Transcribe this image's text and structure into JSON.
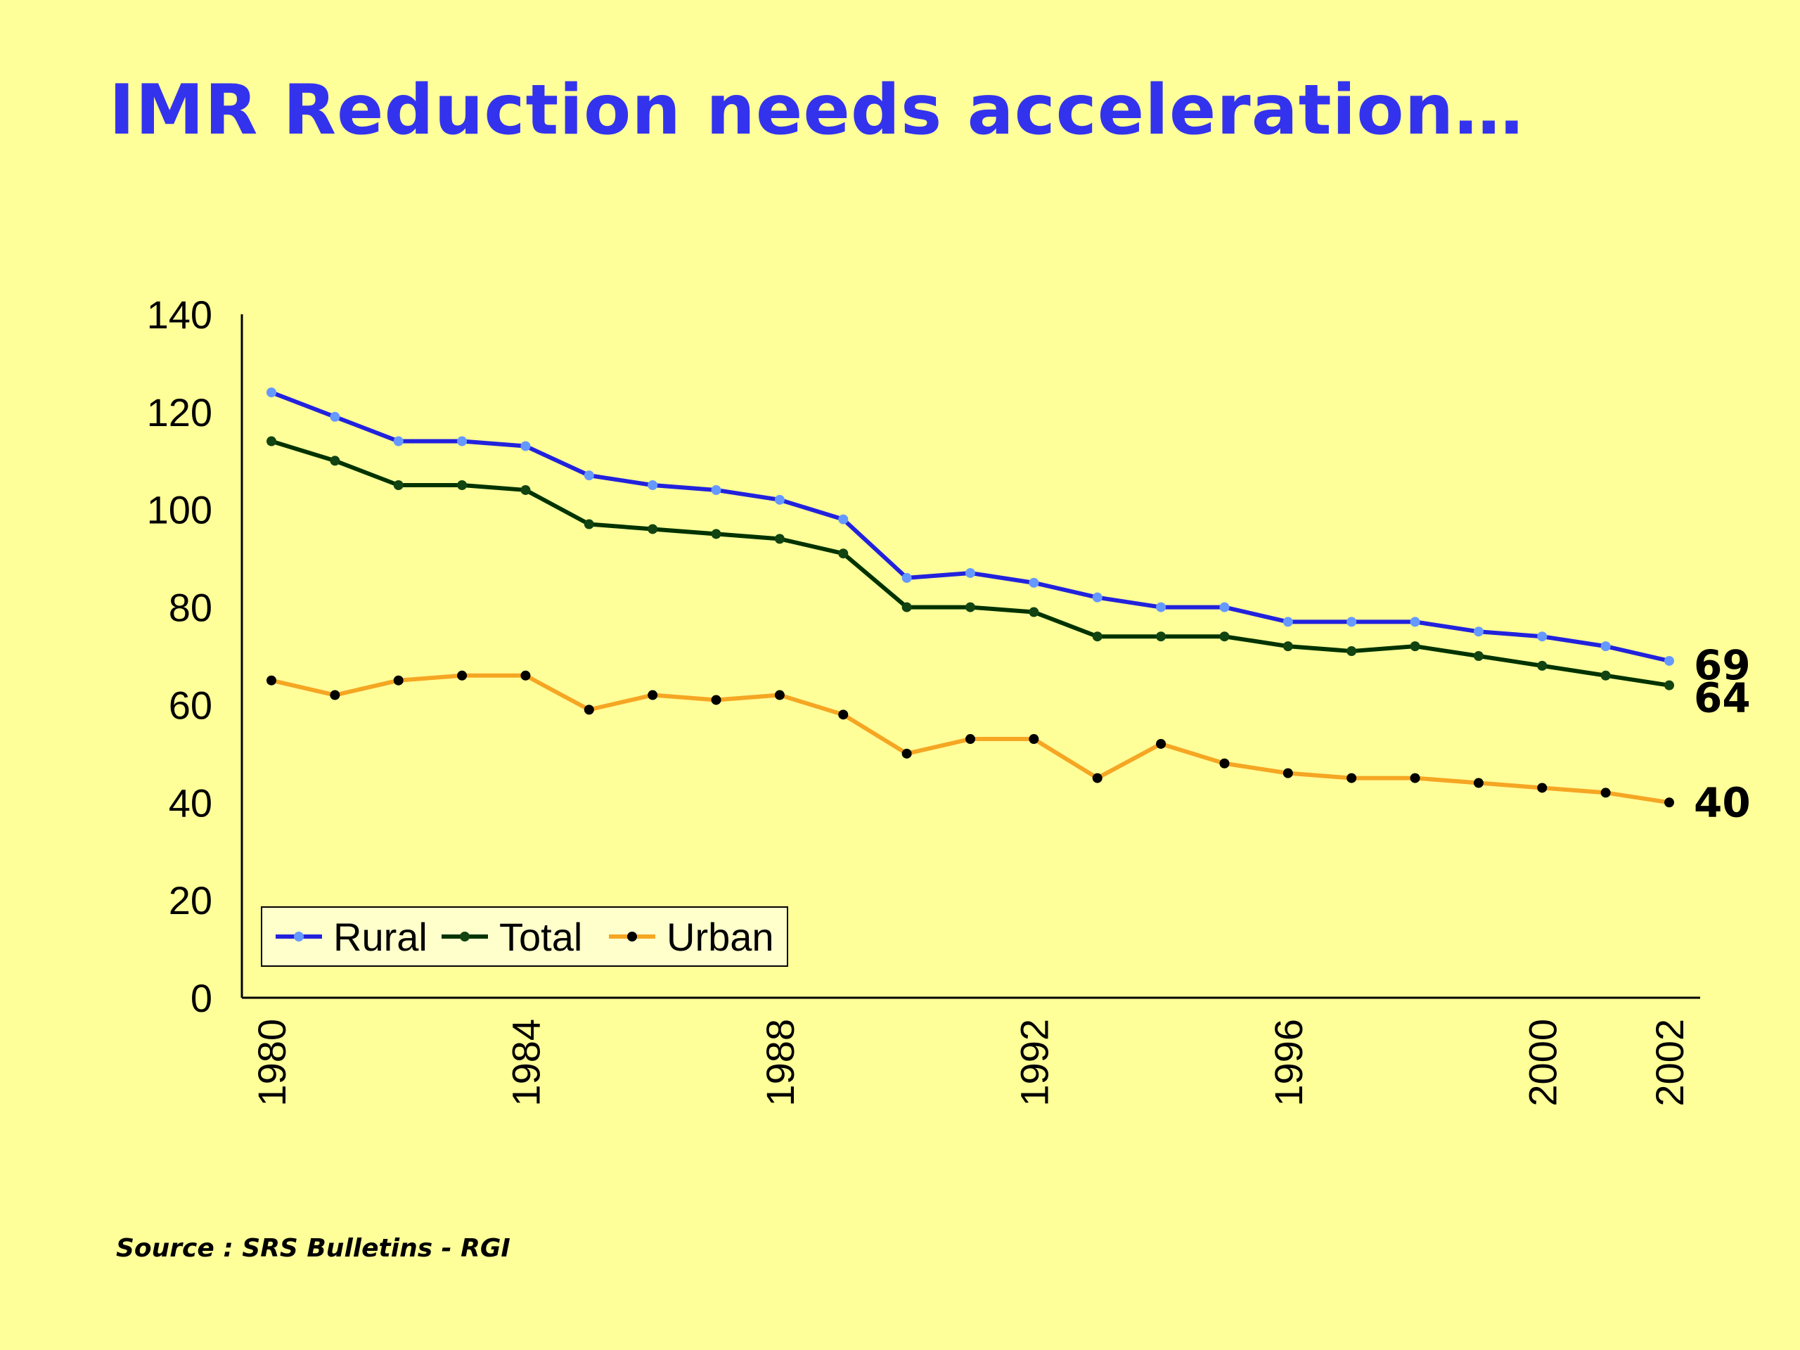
{
  "slide": {
    "title": "IMR Reduction needs acceleration…",
    "source": "Source : SRS Bulletins - RGI",
    "background": "#ffff99",
    "title_color": "#3333ee"
  },
  "chart_data": {
    "type": "line",
    "title": "",
    "xlabel": "",
    "ylabel": "",
    "x": [
      1980,
      1981,
      1982,
      1983,
      1984,
      1985,
      1986,
      1987,
      1988,
      1989,
      1990,
      1991,
      1992,
      1993,
      1994,
      1995,
      1996,
      1997,
      1998,
      1999,
      2000,
      2001,
      2002
    ],
    "xticks": [
      "1980",
      "1984",
      "1988",
      "1992",
      "1996",
      "2000",
      "2002"
    ],
    "yticks": [
      0,
      20,
      40,
      60,
      80,
      100,
      120,
      140
    ],
    "ylim": [
      0,
      140
    ],
    "grid": false,
    "legend": {
      "placement": "bottom-left",
      "entries": [
        "Rural",
        "Total",
        "Urban"
      ]
    },
    "series": [
      {
        "name": "Rural",
        "color": "#2222dd",
        "marker_color": "#6699ff",
        "values": [
          124,
          119,
          114,
          114,
          113,
          107,
          105,
          104,
          102,
          98,
          86,
          87,
          85,
          82,
          80,
          80,
          77,
          77,
          77,
          75,
          74,
          72,
          69
        ],
        "end_label": "69"
      },
      {
        "name": "Total",
        "color": "#003300",
        "marker_color": "#114411",
        "values": [
          114,
          110,
          105,
          105,
          104,
          97,
          96,
          95,
          94,
          91,
          80,
          80,
          79,
          74,
          74,
          74,
          72,
          71,
          72,
          70,
          68,
          66,
          64
        ],
        "end_label": "64"
      },
      {
        "name": "Urban",
        "color": "#f5a623",
        "marker_color": "#000000",
        "values": [
          65,
          62,
          65,
          66,
          66,
          59,
          62,
          61,
          62,
          58,
          50,
          53,
          53,
          45,
          52,
          48,
          46,
          45,
          45,
          44,
          43,
          42,
          40
        ],
        "end_label": "40"
      }
    ]
  }
}
